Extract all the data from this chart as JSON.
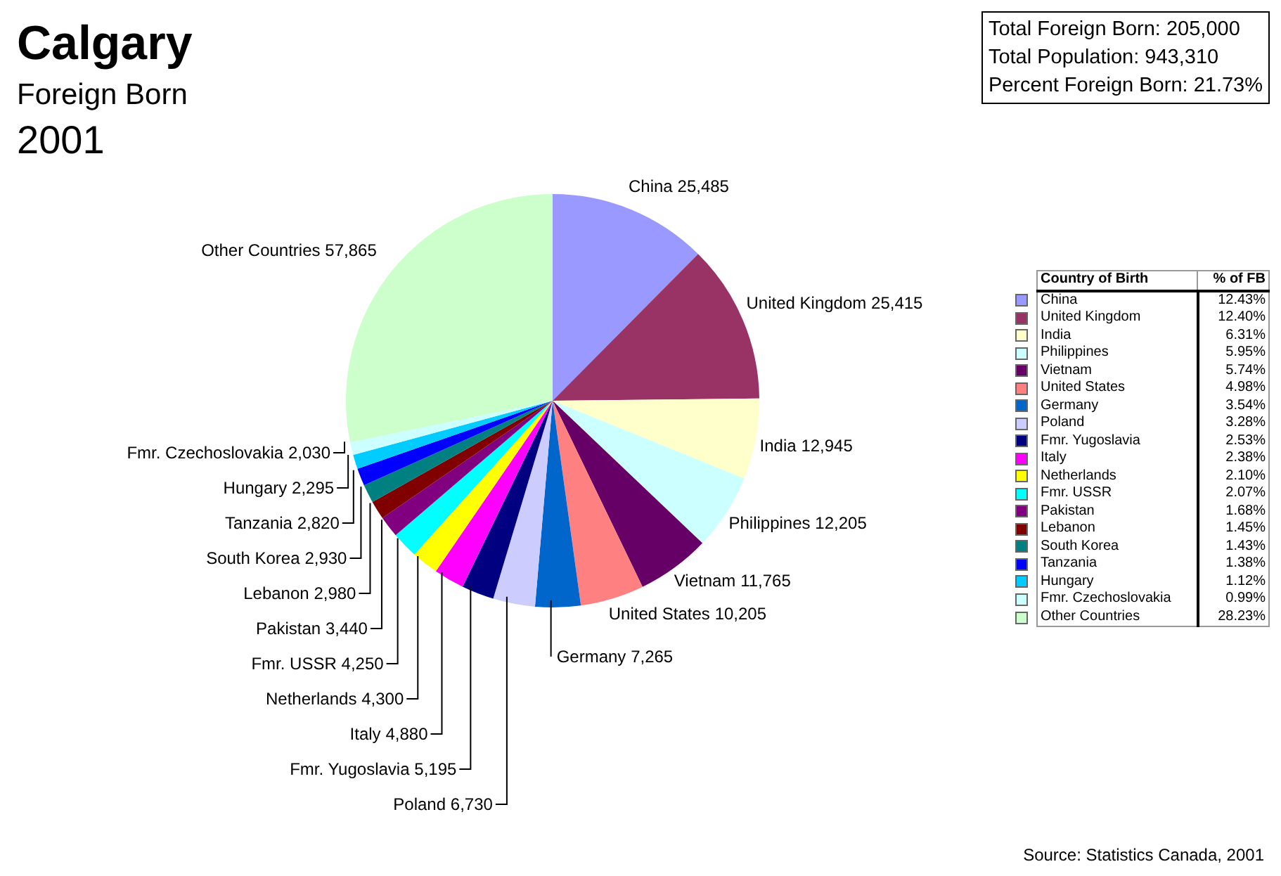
{
  "chart_data": [
    {
      "type": "pie",
      "title": "Calgary",
      "subtitle": "Foreign Born",
      "value_labels": [
        "25,485",
        "25,415",
        "12,945",
        "12,205",
        "11,765",
        "10,205",
        "7,265",
        "6,730",
        "5,195",
        "4,880",
        "4,300",
        "4,250",
        "3,440",
        "2,980",
        "2,930",
        "2,820",
        "2,295",
        "2,030",
        "57,865"
      ],
      "categories": [
        "China",
        "United Kingdom",
        "India",
        "Philippines",
        "Vietnam",
        "United States",
        "Germany",
        "Poland",
        "Fmr. Yugoslavia",
        "Italy",
        "Netherlands",
        "Fmr. USSR",
        "Pakistan",
        "Lebanon",
        "South Korea",
        "Tanzania",
        "Hungary",
        "Fmr. Czechoslovakia",
        "Other Countries"
      ],
      "values": [
        25485,
        25415,
        12945,
        12205,
        11765,
        10205,
        7265,
        6730,
        5195,
        4880,
        4300,
        4250,
        3440,
        2980,
        2930,
        2820,
        2295,
        2030,
        57865
      ],
      "colors": [
        "#9999ff",
        "#993366",
        "#ffffcc",
        "#ccffff",
        "#660066",
        "#ff8080",
        "#0066cc",
        "#ccccff",
        "#000080",
        "#ff00ff",
        "#ffff00",
        "#00ffff",
        "#800080",
        "#800000",
        "#008080",
        "#0000ff",
        "#00ccff",
        "#ccffff",
        "#ccffcc"
      ],
      "annotations": [
        "2001",
        "Total Foreign Born: 205,000",
        "Total Population: 943,310",
        "Percent Foreign Born: 21.73%",
        "Source: Statistics Canada, 2001"
      ]
    },
    {
      "type": "other",
      "xlabel": "Country of Birth",
      "ylabel": "% of FB",
      "categories": [
        "China",
        "United Kingdom",
        "India",
        "Philippines",
        "Vietnam",
        "United States",
        "Germany",
        "Poland",
        "Fmr. Yugoslavia",
        "Italy",
        "Netherlands",
        "Fmr. USSR",
        "Pakistan",
        "Lebanon",
        "South Korea",
        "Tanzania",
        "Hungary",
        "Fmr. Czechoslovakia",
        "Other Countries"
      ],
      "values": [
        12.43,
        12.4,
        6.31,
        5.95,
        5.74,
        4.98,
        3.54,
        3.28,
        2.53,
        2.38,
        2.1,
        2.07,
        1.68,
        1.45,
        1.43,
        1.38,
        1.12,
        0.99,
        28.23
      ],
      "value_labels": [
        "12.43%",
        "12.40%",
        "6.31%",
        "5.95%",
        "5.74%",
        "4.98%",
        "3.54%",
        "3.28%",
        "2.53%",
        "2.38%",
        "2.10%",
        "2.07%",
        "1.68%",
        "1.45%",
        "1.43%",
        "1.38%",
        "1.12%",
        "0.99%",
        "28.23%"
      ],
      "colors": [
        "#9999ff",
        "#993366",
        "#ffffcc",
        "#ccffff",
        "#660066",
        "#ff8080",
        "#0066cc",
        "#ccccff",
        "#000080",
        "#ff00ff",
        "#ffff00",
        "#00ffff",
        "#800080",
        "#800000",
        "#008080",
        "#0000ff",
        "#00ccff",
        "#ccffff",
        "#ccffcc"
      ]
    }
  ]
}
